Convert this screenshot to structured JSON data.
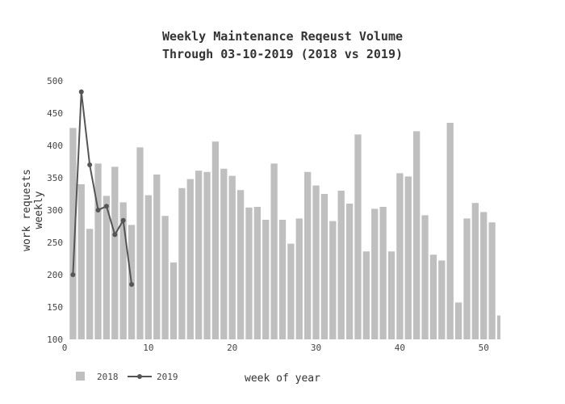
{
  "chart_data": {
    "type": "bar",
    "title_line1": "Weekly Maintenance Reqeust Volume",
    "title_line2": "Through 03-10-2019 (2018 vs 2019)",
    "xlabel": "week of year",
    "ylabel_line1": "work requests",
    "ylabel_line2": "weekly",
    "xlim": [
      0,
      52
    ],
    "ylim": [
      100,
      500
    ],
    "x_ticks": [
      0,
      10,
      20,
      30,
      40,
      50
    ],
    "y_ticks": [
      100,
      150,
      200,
      250,
      300,
      350,
      400,
      450,
      500
    ],
    "grid": false,
    "legend_position": "bottom-left",
    "series": [
      {
        "name": "2018",
        "type": "bar",
        "color": "#bfbfbf",
        "x": [
          1,
          2,
          3,
          4,
          5,
          6,
          7,
          8,
          9,
          10,
          11,
          12,
          13,
          14,
          15,
          16,
          17,
          18,
          19,
          20,
          21,
          22,
          23,
          24,
          25,
          26,
          27,
          28,
          29,
          30,
          31,
          32,
          33,
          34,
          35,
          36,
          37,
          38,
          39,
          40,
          41,
          42,
          43,
          44,
          45,
          46,
          47,
          48,
          49,
          50,
          51,
          52
        ],
        "values": [
          427,
          340,
          271,
          372,
          322,
          367,
          312,
          277,
          397,
          323,
          355,
          291,
          219,
          334,
          348,
          361,
          359,
          406,
          364,
          353,
          331,
          304,
          305,
          285,
          372,
          285,
          248,
          287,
          359,
          338,
          325,
          283,
          330,
          310,
          417,
          236,
          302,
          305,
          236,
          357,
          352,
          422,
          292,
          231,
          222,
          435,
          157,
          287,
          311,
          297,
          281,
          137
        ]
      },
      {
        "name": "2019",
        "type": "line",
        "color": "#555555",
        "x": [
          1,
          2,
          3,
          4,
          5,
          6,
          7,
          8
        ],
        "values": [
          200,
          483,
          370,
          300,
          306,
          262,
          284,
          185
        ]
      }
    ]
  }
}
